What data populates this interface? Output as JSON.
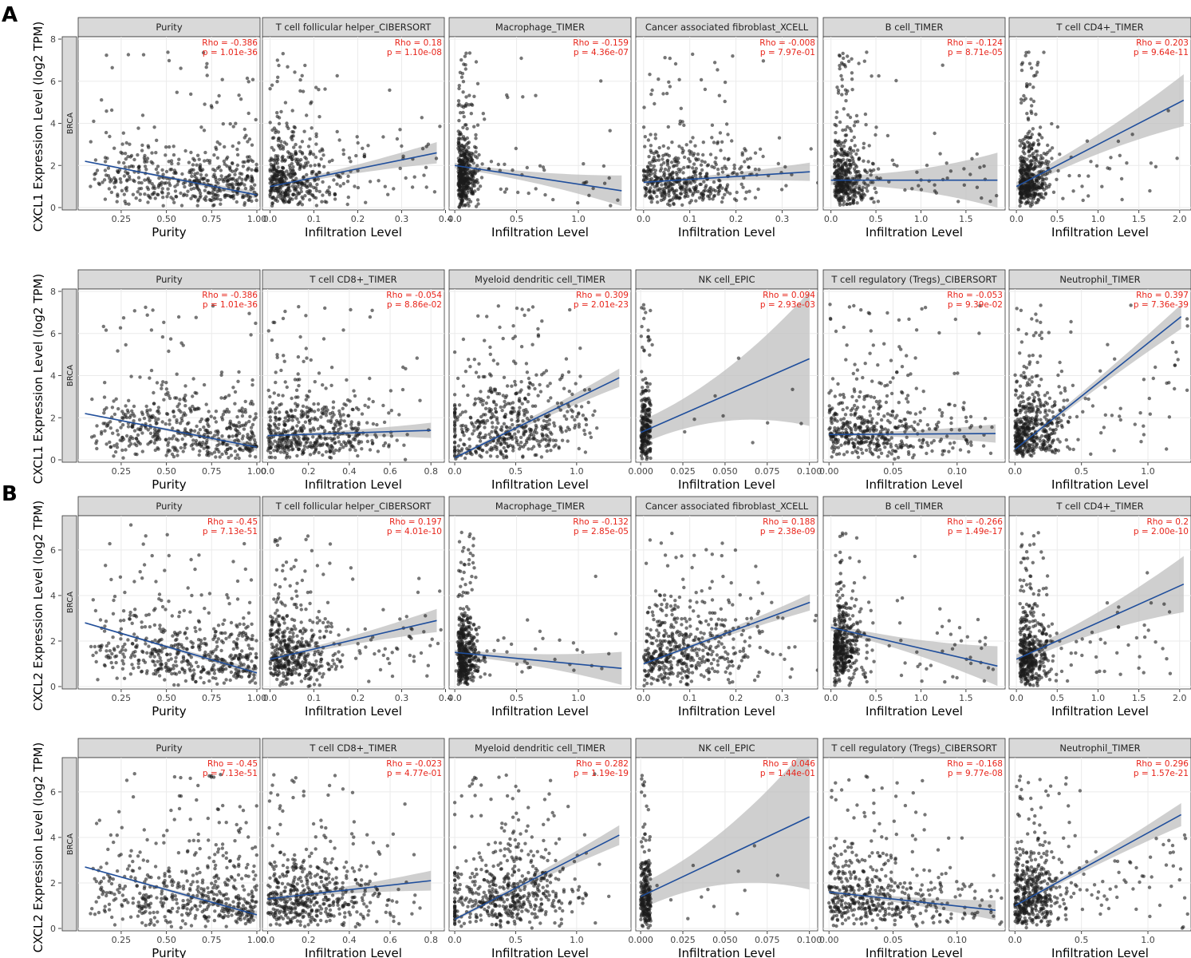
{
  "figure": {
    "panel_labels": [
      "A",
      "B"
    ],
    "cancer_label": "BRCA",
    "ylabels": [
      "CXCL1 Expression Level (log2 TPM)",
      "CXCL2 Expression Level (log2 TPM)"
    ],
    "colors": {
      "strip_fill": "#d9d9d9",
      "strip_border": "#333333",
      "grid": "#ebebeb",
      "points": "#1a1a1a",
      "regression_line": "#1f4e9c",
      "confidence_band": "#bfbfbf",
      "stats_text": "#e8241a"
    }
  },
  "chart_data": [
    {
      "type": "scatter",
      "gene": "CXCL1",
      "ylabel": "CXCL1 Expression Level (log2 TPM)",
      "ylim": [
        0,
        8
      ],
      "yticks": [
        0,
        2,
        4,
        6,
        8
      ],
      "panels": [
        {
          "strip": "Purity",
          "xlabel": "Purity",
          "rho": "Rho = -0.386",
          "p": "p = 1.01e-36",
          "xlim": [
            0.03,
            1.0
          ],
          "xticks": [
            0.25,
            0.5,
            0.75,
            1.0
          ],
          "xticklabels": [
            "0.25",
            "0.50",
            "0.75",
            "1.00"
          ],
          "fit": [
            [
              0.05,
              2.2
            ],
            [
              1.0,
              0.6
            ]
          ],
          "band": 0.12,
          "n_points": 500,
          "x_dist": "purity",
          "y_base": 0.6,
          "y_scale": 1.3
        },
        {
          "strip": "T cell follicular helper_CIBERSORT",
          "xlabel": "Infiltration Level",
          "rho": "Rho = 0.18",
          "p": "p = 1.10e-08",
          "xlim": [
            -0.01,
            0.39
          ],
          "xticks": [
            0.0,
            0.1,
            0.2,
            0.3,
            0.4
          ],
          "xticklabels": [
            "0.0",
            "0.1",
            "0.2",
            "0.3",
            "0.4"
          ],
          "fit": [
            [
              0.0,
              1.0
            ],
            [
              0.38,
              2.6
            ]
          ],
          "band": 0.35,
          "n_points": 480,
          "x_dist": "low",
          "x_cap": 0.15,
          "y_base": 0.6,
          "y_scale": 1.4
        },
        {
          "strip": "Macrophage_TIMER",
          "xlabel": "Infiltration Level",
          "rho": "Rho = -0.159",
          "p": "p = 4.36e-07",
          "xlim": [
            -0.02,
            1.4
          ],
          "xticks": [
            0.0,
            0.5,
            1.0
          ],
          "xticklabels": [
            "0.0",
            "0.5",
            "1.0"
          ],
          "fit": [
            [
              0.0,
              2.0
            ],
            [
              1.35,
              0.8
            ]
          ],
          "band": 0.5,
          "n_points": 460,
          "x_dist": "left",
          "x_cap": 0.2,
          "y_base": 0.8,
          "y_scale": 1.3
        },
        {
          "strip": "Cancer associated fibroblast_XCELL",
          "xlabel": "Infiltration Level",
          "rho": "Rho = -0.008",
          "p": "p = 7.97e-01",
          "xlim": [
            -0.01,
            0.37
          ],
          "xticks": [
            0.0,
            0.1,
            0.2,
            0.3
          ],
          "xticklabels": [
            "0.0",
            "0.1",
            "0.2",
            "0.3"
          ],
          "fit": [
            [
              0.0,
              1.2
            ],
            [
              0.36,
              1.7
            ]
          ],
          "band": 0.3,
          "n_points": 480,
          "x_dist": "spread",
          "x_cap": 0.3,
          "y_base": 0.6,
          "y_scale": 1.3
        },
        {
          "strip": "B cell_TIMER",
          "xlabel": "Infiltration Level",
          "rho": "Rho = -0.124",
          "p": "p = 8.71e-05",
          "xlim": [
            -0.05,
            1.9
          ],
          "xticks": [
            0.0,
            0.5,
            1.0,
            1.5
          ],
          "xticklabels": [
            "0.0",
            "0.5",
            "1.0",
            "1.5"
          ],
          "fit": [
            [
              0.0,
              1.3
            ],
            [
              1.85,
              1.3
            ]
          ],
          "band": 0.9,
          "n_points": 460,
          "x_dist": "left",
          "x_cap": 0.5,
          "y_base": 0.6,
          "y_scale": 1.3
        },
        {
          "strip": "T cell CD4+_TIMER",
          "xlabel": "Infiltration Level",
          "rho": "Rho = 0.203",
          "p": "p = 9.64e-11",
          "xlim": [
            -0.05,
            2.1
          ],
          "xticks": [
            0.0,
            0.5,
            1.0,
            1.5,
            2.0
          ],
          "xticklabels": [
            "0.0",
            "0.5",
            "1.0",
            "1.5",
            "2.0"
          ],
          "fit": [
            [
              0.0,
              1.0
            ],
            [
              2.05,
              5.1
            ]
          ],
          "band": 0.85,
          "n_points": 460,
          "x_dist": "left",
          "x_cap": 0.5,
          "y_base": 0.8,
          "y_scale": 1.3
        }
      ]
    },
    {
      "type": "scatter",
      "gene": "CXCL1",
      "ylabel": "CXCL1 Expression Level (log2 TPM)",
      "ylim": [
        0,
        8
      ],
      "yticks": [
        0,
        2,
        4,
        6,
        8
      ],
      "panels": [
        {
          "strip": "Purity",
          "xlabel": "Purity",
          "rho": "Rho = -0.386",
          "p": "p = 1.01e-36",
          "xlim": [
            0.03,
            1.0
          ],
          "xticks": [
            0.25,
            0.5,
            0.75,
            1.0
          ],
          "xticklabels": [
            "0.25",
            "0.50",
            "0.75",
            "1.00"
          ],
          "fit": [
            [
              0.05,
              2.2
            ],
            [
              1.0,
              0.6
            ]
          ],
          "band": 0.12,
          "n_points": 500,
          "x_dist": "purity",
          "y_base": 0.6,
          "y_scale": 1.3
        },
        {
          "strip": "T cell CD8+_TIMER",
          "xlabel": "Infiltration Level",
          "rho": "Rho = -0.054",
          "p": "p = 8.86e-02",
          "xlim": [
            -0.01,
            0.85
          ],
          "xticks": [
            0.0,
            0.2,
            0.4,
            0.6,
            0.8
          ],
          "xticklabels": [
            "0.0",
            "0.2",
            "0.4",
            "0.6",
            "0.8"
          ],
          "fit": [
            [
              0.0,
              1.15
            ],
            [
              0.8,
              1.4
            ]
          ],
          "band": 0.25,
          "n_points": 500,
          "x_dist": "spread",
          "x_cap": 0.7,
          "y_base": 0.5,
          "y_scale": 1.3
        },
        {
          "strip": "Myeloid dendritic cell_TIMER",
          "xlabel": "Infiltration Level",
          "rho": "Rho = 0.309",
          "p": "p = 2.01e-23",
          "xlim": [
            -0.02,
            1.42
          ],
          "xticks": [
            0.0,
            0.5,
            1.0
          ],
          "xticklabels": [
            "0.0",
            "0.5",
            "1.0"
          ],
          "fit": [
            [
              0.0,
              0.1
            ],
            [
              1.35,
              3.9
            ]
          ],
          "band": 0.3,
          "n_points": 520,
          "x_dist": "mid",
          "x_center": 0.45,
          "y_base": 0.4,
          "y_scale": 1.5
        },
        {
          "strip": "NK cell_EPIC",
          "xlabel": "Infiltration Level",
          "rho": "Rho = 0.094",
          "p": "p = 2.93e-03",
          "xlim": [
            -0.001,
            0.103
          ],
          "xticks": [
            0.0,
            0.025,
            0.05,
            0.075,
            0.1
          ],
          "xticklabels": [
            "0.000",
            "0.025",
            "0.050",
            "0.075",
            "0.100"
          ],
          "fit": [
            [
              0.0,
              1.3
            ],
            [
              0.1,
              4.8
            ]
          ],
          "band": 2.2,
          "n_points": 240,
          "x_dist": "zero",
          "x_cap": 0.006,
          "y_base": 0.6,
          "y_scale": 1.4
        },
        {
          "strip": "T cell regulatory (Tregs)_CIBERSORT",
          "xlabel": "Infiltration Level",
          "rho": "Rho = -0.053",
          "p": "p = 9.39e-02",
          "xlim": [
            -0.002,
            0.135
          ],
          "xticks": [
            0.0,
            0.05,
            0.1
          ],
          "xticklabels": [
            "0.00",
            "0.05",
            "0.10"
          ],
          "fit": [
            [
              0.0,
              1.2
            ],
            [
              0.13,
              1.25
            ]
          ],
          "band": 0.3,
          "n_points": 480,
          "x_dist": "low",
          "x_cap": 0.1,
          "y_base": 0.5,
          "y_scale": 1.3
        },
        {
          "strip": "Neutrophil_TIMER",
          "xlabel": "Infiltration Level",
          "rho": "Rho = 0.397",
          "p": "p = 7.36e-39",
          "xlim": [
            -0.02,
            1.3
          ],
          "xticks": [
            0.0,
            0.5,
            1.0
          ],
          "xticklabels": [
            "0.0",
            "0.5",
            "1.0"
          ],
          "fit": [
            [
              0.0,
              0.5
            ],
            [
              1.25,
              6.8
            ]
          ],
          "band": 0.4,
          "n_points": 500,
          "x_dist": "low",
          "x_cap": 0.4,
          "y_base": 0.8,
          "y_scale": 1.4
        }
      ]
    },
    {
      "type": "scatter",
      "gene": "CXCL2",
      "ylabel": "CXCL2 Expression Level (log2 TPM)",
      "ylim": [
        0,
        7.4
      ],
      "yticks": [
        0,
        2,
        4,
        6
      ],
      "panels": [
        {
          "strip": "Purity",
          "xlabel": "Purity",
          "rho": "Rho = -0.45",
          "p": "p = 7.13e-51",
          "xlim": [
            0.03,
            1.0
          ],
          "xticks": [
            0.25,
            0.5,
            0.75,
            1.0
          ],
          "xticklabels": [
            "0.25",
            "0.50",
            "0.75",
            "1.00"
          ],
          "fit": [
            [
              0.05,
              2.8
            ],
            [
              1.0,
              0.6
            ]
          ],
          "band": 0.12,
          "n_points": 500,
          "x_dist": "purity",
          "y_base": 1.0,
          "y_scale": 1.3
        },
        {
          "strip": "T cell follicular helper_CIBERSORT",
          "xlabel": "Infiltration Level",
          "rho": "Rho = 0.197",
          "p": "p = 4.01e-10",
          "xlim": [
            -0.01,
            0.39
          ],
          "xticks": [
            0.0,
            0.1,
            0.2,
            0.3,
            0.4
          ],
          "xticklabels": [
            "0.0",
            "0.1",
            "0.2",
            "0.3",
            "0.4"
          ],
          "fit": [
            [
              0.0,
              1.2
            ],
            [
              0.38,
              2.9
            ]
          ],
          "band": 0.35,
          "n_points": 480,
          "x_dist": "low",
          "x_cap": 0.15,
          "y_base": 1.0,
          "y_scale": 1.3
        },
        {
          "strip": "Macrophage_TIMER",
          "xlabel": "Infiltration Level",
          "rho": "Rho = -0.132",
          "p": "p = 2.85e-05",
          "xlim": [
            -0.02,
            1.4
          ],
          "xticks": [
            0.0,
            0.5,
            1.0
          ],
          "xticklabels": [
            "0.0",
            "0.5",
            "1.0"
          ],
          "fit": [
            [
              0.0,
              1.5
            ],
            [
              1.35,
              0.8
            ]
          ],
          "band": 0.5,
          "n_points": 460,
          "x_dist": "left",
          "x_cap": 0.2,
          "y_base": 1.0,
          "y_scale": 1.3
        },
        {
          "strip": "Cancer associated fibroblast_XCELL",
          "xlabel": "Infiltration Level",
          "rho": "Rho = 0.188",
          "p": "p = 2.38e-09",
          "xlim": [
            -0.01,
            0.37
          ],
          "xticks": [
            0.0,
            0.1,
            0.2,
            0.3
          ],
          "xticklabels": [
            "0.0",
            "0.1",
            "0.2",
            "0.3"
          ],
          "fit": [
            [
              0.0,
              1.0
            ],
            [
              0.36,
              3.7
            ]
          ],
          "band": 0.25,
          "n_points": 500,
          "x_dist": "spread",
          "x_cap": 0.3,
          "y_base": 0.9,
          "y_scale": 1.4
        },
        {
          "strip": "B cell_TIMER",
          "xlabel": "Infiltration Level",
          "rho": "Rho = -0.266",
          "p": "p = 1.49e-17",
          "xlim": [
            -0.05,
            1.9
          ],
          "xticks": [
            0.0,
            0.5,
            1.0,
            1.5
          ],
          "xticklabels": [
            "0.0",
            "0.5",
            "1.0",
            "1.5"
          ],
          "fit": [
            [
              0.0,
              2.6
            ],
            [
              1.85,
              0.9
            ]
          ],
          "band": 0.6,
          "n_points": 460,
          "x_dist": "left",
          "x_cap": 0.4,
          "y_base": 2.0,
          "y_scale": 1.2
        },
        {
          "strip": "T cell CD4+_TIMER",
          "xlabel": "Infiltration Level",
          "rho": "Rho = 0.2",
          "p": "p = 2.00e-10",
          "xlim": [
            -0.05,
            2.1
          ],
          "xticks": [
            0.0,
            0.5,
            1.0,
            1.5,
            2.0
          ],
          "xticklabels": [
            "0.0",
            "0.5",
            "1.0",
            "1.5",
            "2.0"
          ],
          "fit": [
            [
              0.0,
              1.2
            ],
            [
              2.05,
              4.5
            ]
          ],
          "band": 0.85,
          "n_points": 460,
          "x_dist": "left",
          "x_cap": 0.5,
          "y_base": 1.0,
          "y_scale": 1.3
        }
      ]
    },
    {
      "type": "scatter",
      "gene": "CXCL2",
      "ylabel": "CXCL2 Expression Level (log2 TPM)",
      "ylim": [
        0,
        7.4
      ],
      "yticks": [
        0,
        2,
        4,
        6
      ],
      "panels": [
        {
          "strip": "Purity",
          "xlabel": "Purity",
          "rho": "Rho = -0.45",
          "p": "p = 7.13e-51",
          "xlim": [
            0.03,
            1.0
          ],
          "xticks": [
            0.25,
            0.5,
            0.75,
            1.0
          ],
          "xticklabels": [
            "0.25",
            "0.50",
            "0.75",
            "1.00"
          ],
          "fit": [
            [
              0.05,
              2.7
            ],
            [
              1.0,
              0.6
            ]
          ],
          "band": 0.12,
          "n_points": 500,
          "x_dist": "purity",
          "y_base": 1.0,
          "y_scale": 1.3
        },
        {
          "strip": "T cell CD8+_TIMER",
          "xlabel": "Infiltration Level",
          "rho": "Rho = -0.023",
          "p": "p = 4.77e-01",
          "xlim": [
            -0.01,
            0.85
          ],
          "xticks": [
            0.0,
            0.2,
            0.4,
            0.6,
            0.8
          ],
          "xticklabels": [
            "0.0",
            "0.2",
            "0.4",
            "0.6",
            "0.8"
          ],
          "fit": [
            [
              0.0,
              1.3
            ],
            [
              0.8,
              2.1
            ]
          ],
          "band": 0.3,
          "n_points": 500,
          "x_dist": "spread",
          "x_cap": 0.7,
          "y_base": 0.9,
          "y_scale": 1.3
        },
        {
          "strip": "Myeloid dendritic cell_TIMER",
          "xlabel": "Infiltration Level",
          "rho": "Rho = 0.282",
          "p": "p = 1.19e-19",
          "xlim": [
            -0.02,
            1.42
          ],
          "xticks": [
            0.0,
            0.5,
            1.0
          ],
          "xticklabels": [
            "0.0",
            "0.5",
            "1.0"
          ],
          "fit": [
            [
              0.0,
              0.4
            ],
            [
              1.35,
              4.1
            ]
          ],
          "band": 0.3,
          "n_points": 520,
          "x_dist": "mid",
          "x_center": 0.45,
          "y_base": 0.8,
          "y_scale": 1.4
        },
        {
          "strip": "NK cell_EPIC",
          "xlabel": "Infiltration Level",
          "rho": "Rho = 0.046",
          "p": "p = 1.44e-01",
          "xlim": [
            -0.001,
            0.103
          ],
          "xticks": [
            0.0,
            0.025,
            0.05,
            0.075,
            0.1
          ],
          "xticklabels": [
            "0.000",
            "0.025",
            "0.050",
            "0.075",
            "0.100"
          ],
          "fit": [
            [
              0.0,
              1.4
            ],
            [
              0.1,
              4.9
            ]
          ],
          "band": 2.2,
          "n_points": 240,
          "x_dist": "zero",
          "x_cap": 0.006,
          "y_base": 1.0,
          "y_scale": 1.3
        },
        {
          "strip": "T cell regulatory (Tregs)_CIBERSORT",
          "xlabel": "Infiltration Level",
          "rho": "Rho = -0.168",
          "p": "p = 9.77e-08",
          "xlim": [
            -0.002,
            0.135
          ],
          "xticks": [
            0.0,
            0.05,
            0.1
          ],
          "xticklabels": [
            "0.00",
            "0.05",
            "0.10"
          ],
          "fit": [
            [
              0.0,
              1.6
            ],
            [
              0.13,
              0.8
            ]
          ],
          "band": 0.3,
          "n_points": 480,
          "x_dist": "low",
          "x_cap": 0.1,
          "y_base": 0.9,
          "y_scale": 1.3
        },
        {
          "strip": "Neutrophil_TIMER",
          "xlabel": "Infiltration Level",
          "rho": "Rho = 0.296",
          "p": "p = 1.57e-21",
          "xlim": [
            -0.02,
            1.3
          ],
          "xticks": [
            0.0,
            0.5,
            1.0
          ],
          "xticklabels": [
            "0.0",
            "0.5",
            "1.0"
          ],
          "fit": [
            [
              0.0,
              1.0
            ],
            [
              1.25,
              5.0
            ]
          ],
          "band": 0.35,
          "n_points": 500,
          "x_dist": "low",
          "x_cap": 0.4,
          "y_base": 1.2,
          "y_scale": 1.4
        }
      ]
    }
  ]
}
